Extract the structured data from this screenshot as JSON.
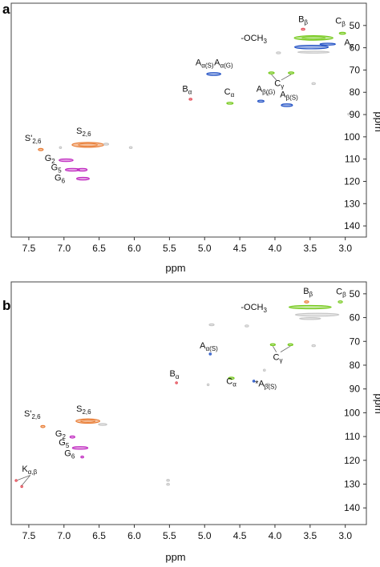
{
  "chart_data": [
    {
      "type": "scatter",
      "panel_label": "a",
      "xlabel": "ppm",
      "ylabel": "ppm",
      "xlim": [
        7.75,
        2.7
      ],
      "ylim": [
        40,
        145
      ],
      "x_ticks": [
        7.5,
        7.0,
        6.5,
        6.0,
        5.5,
        5.0,
        4.5,
        4.0,
        3.5,
        3.0
      ],
      "x_tick_labels": [
        "7.5",
        "7.0",
        "6.5",
        "6.0",
        "5.5",
        "5.0",
        "4.5",
        "4.0",
        "3.5",
        "3.0"
      ],
      "y_ticks": [
        50,
        60,
        70,
        80,
        90,
        100,
        110,
        120,
        130,
        140
      ],
      "y_tick_labels": [
        "50",
        "60",
        "70",
        "80",
        "90",
        "100",
        "110",
        "120",
        "130",
        "140"
      ],
      "series": [
        {
          "color": "#e8792f",
          "points": [
            {
              "x": 6.66,
              "y": 103.6,
              "w": 0.45,
              "h": 2.2
            },
            {
              "x": 7.33,
              "y": 105.7,
              "w": 0.07,
              "h": 1.0
            }
          ]
        },
        {
          "color": "#c02ac0",
          "points": [
            {
              "x": 6.97,
              "y": 110.5,
              "w": 0.2,
              "h": 1.2
            },
            {
              "x": 6.88,
              "y": 114.8,
              "w": 0.2,
              "h": 1.2
            },
            {
              "x": 6.74,
              "y": 114.8,
              "w": 0.14,
              "h": 1.2
            },
            {
              "x": 6.73,
              "y": 118.8,
              "w": 0.18,
              "h": 1.2
            }
          ]
        },
        {
          "color": "#1f4fc4",
          "points": [
            {
              "x": 4.87,
              "y": 71.8,
              "w": 0.2,
              "h": 1.3
            },
            {
              "x": 3.83,
              "y": 85.8,
              "w": 0.16,
              "h": 1.2
            },
            {
              "x": 4.2,
              "y": 84.0,
              "w": 0.09,
              "h": 0.9
            },
            {
              "x": 3.48,
              "y": 59.7,
              "w": 0.48,
              "h": 1.6
            },
            {
              "x": 3.25,
              "y": 58.4,
              "w": 0.22,
              "h": 0.8
            }
          ]
        },
        {
          "color": "#72c816",
          "points": [
            {
              "x": 3.45,
              "y": 55.6,
              "w": 0.55,
              "h": 2.0
            },
            {
              "x": 3.04,
              "y": 53.5,
              "w": 0.09,
              "h": 0.9
            },
            {
              "x": 4.05,
              "y": 71.3,
              "w": 0.08,
              "h": 0.9
            },
            {
              "x": 3.77,
              "y": 71.3,
              "w": 0.08,
              "h": 0.9
            },
            {
              "x": 4.64,
              "y": 84.9,
              "w": 0.09,
              "h": 0.9
            }
          ]
        },
        {
          "color": "#e34a55",
          "points": [
            {
              "x": 3.6,
              "y": 51.7,
              "w": 0.05,
              "h": 0.8
            },
            {
              "x": 5.2,
              "y": 83.1,
              "w": 0.04,
              "h": 0.6
            }
          ]
        },
        {
          "color": "#c6c6c6",
          "points": [
            {
              "x": 3.45,
              "y": 62.0,
              "w": 0.45,
              "h": 0.7
            },
            {
              "x": 3.95,
              "y": 62.3,
              "w": 0.06,
              "h": 0.6
            },
            {
              "x": 3.45,
              "y": 76.1,
              "w": 0.05,
              "h": 0.5
            },
            {
              "x": 4.1,
              "y": 81.0,
              "w": 0.04,
              "h": 0.5
            },
            {
              "x": 6.4,
              "y": 103.3,
              "w": 0.07,
              "h": 0.5
            },
            {
              "x": 6.05,
              "y": 104.8,
              "w": 0.04,
              "h": 0.5
            },
            {
              "x": 7.05,
              "y": 104.8,
              "w": 0.03,
              "h": 0.4
            },
            {
              "x": 2.95,
              "y": 89.8,
              "w": 0.03,
              "h": 0.4
            }
          ]
        }
      ],
      "labels": [
        {
          "text": "S'",
          "sub": "2,6",
          "x": 7.44,
          "y": 101.8
        },
        {
          "text": "S",
          "sub": "2,6",
          "x": 6.72,
          "y": 98.6
        },
        {
          "text": "G",
          "sub": "2",
          "x": 7.2,
          "y": 110.8
        },
        {
          "text": "G",
          "sub": "5",
          "x": 7.11,
          "y": 115.0
        },
        {
          "text": "G",
          "sub": "6",
          "x": 7.06,
          "y": 119.6
        },
        {
          "text": "A",
          "sub": "α(S)",
          "x": 5.0,
          "y": 67.8
        },
        {
          "text": "A",
          "sub": "α(G)",
          "x": 4.73,
          "y": 67.8
        },
        {
          "text": "B",
          "sub": "α",
          "x": 5.25,
          "y": 79.8
        },
        {
          "text": "C",
          "sub": "α",
          "x": 4.65,
          "y": 81.0
        },
        {
          "text": "A",
          "sub": "β(G)",
          "x": 4.13,
          "y": 79.8
        },
        {
          "text": "A",
          "sub": "β(S)",
          "x": 3.8,
          "y": 82.2
        },
        {
          "text": "C",
          "sub": "γ",
          "x": 3.94,
          "y": 77.2
        },
        {
          "text": "-OCH",
          "sub": "3",
          "x": 4.3,
          "y": 56.9
        },
        {
          "text": "B",
          "sub": "β",
          "x": 3.6,
          "y": 48.5
        },
        {
          "text": "C",
          "sub": "β",
          "x": 3.07,
          "y": 49.1
        },
        {
          "text": "A",
          "sub": "γ",
          "x": 2.95,
          "y": 58.9
        }
      ],
      "leaders": [
        {
          "x1": 3.98,
          "y1": 74.5,
          "x2": 4.05,
          "y2": 72.0
        },
        {
          "x1": 3.91,
          "y1": 74.5,
          "x2": 3.77,
          "y2": 72.0
        }
      ]
    },
    {
      "type": "scatter",
      "panel_label": "b",
      "xlabel": "ppm",
      "ylabel": "ppm",
      "xlim": [
        7.75,
        2.7
      ],
      "ylim": [
        45,
        147
      ],
      "x_ticks": [
        7.5,
        7.0,
        6.5,
        6.0,
        5.5,
        5.0,
        4.5,
        4.0,
        3.5,
        3.0
      ],
      "x_tick_labels": [
        "7.5",
        "7.0",
        "6.5",
        "6.0",
        "5.5",
        "5.0",
        "4.5",
        "4.0",
        "3.5",
        "3.0"
      ],
      "y_ticks": [
        50,
        60,
        70,
        80,
        90,
        100,
        110,
        120,
        130,
        140
      ],
      "y_tick_labels": [
        "50",
        "60",
        "70",
        "80",
        "90",
        "100",
        "110",
        "120",
        "130",
        "140"
      ],
      "series": [
        {
          "color": "#e8792f",
          "points": [
            {
              "x": 6.66,
              "y": 103.5,
              "w": 0.34,
              "h": 1.8
            },
            {
              "x": 7.3,
              "y": 105.8,
              "w": 0.06,
              "h": 0.9
            },
            {
              "x": 3.55,
              "y": 53.4,
              "w": 0.06,
              "h": 0.9
            }
          ]
        },
        {
          "color": "#c02ac0",
          "points": [
            {
              "x": 6.88,
              "y": 110.2,
              "w": 0.07,
              "h": 0.9
            },
            {
              "x": 6.77,
              "y": 114.8,
              "w": 0.22,
              "h": 1.1
            },
            {
              "x": 6.74,
              "y": 118.6,
              "w": 0.04,
              "h": 0.7
            }
          ]
        },
        {
          "color": "#72c816",
          "points": [
            {
              "x": 3.5,
              "y": 55.6,
              "w": 0.6,
              "h": 1.4
            },
            {
              "x": 3.07,
              "y": 53.4,
              "w": 0.06,
              "h": 0.9
            },
            {
              "x": 4.03,
              "y": 71.4,
              "w": 0.07,
              "h": 0.8
            },
            {
              "x": 3.78,
              "y": 71.4,
              "w": 0.07,
              "h": 0.8
            },
            {
              "x": 4.62,
              "y": 85.5,
              "w": 0.08,
              "h": 0.9
            }
          ]
        },
        {
          "color": "#1f4fc4",
          "points": [
            {
              "x": 4.92,
              "y": 75.3,
              "w": 0.02,
              "h": 0.4
            },
            {
              "x": 4.3,
              "y": 86.7,
              "w": 0.02,
              "h": 0.4
            }
          ]
        },
        {
          "color": "#e34a55",
          "points": [
            {
              "x": 5.4,
              "y": 87.4,
              "w": 0.02,
              "h": 0.4
            },
            {
              "x": 7.68,
              "y": 128.5,
              "w": 0.025,
              "h": 0.6
            },
            {
              "x": 7.6,
              "y": 131.0,
              "w": 0.025,
              "h": 0.6
            }
          ]
        },
        {
          "color": "#c6c6c6",
          "points": [
            {
              "x": 3.4,
              "y": 58.8,
              "w": 0.62,
              "h": 1.2
            },
            {
              "x": 3.5,
              "y": 60.4,
              "w": 0.3,
              "h": 0.7
            },
            {
              "x": 4.9,
              "y": 63.0,
              "w": 0.07,
              "h": 0.5
            },
            {
              "x": 4.4,
              "y": 63.5,
              "w": 0.05,
              "h": 0.4
            },
            {
              "x": 3.45,
              "y": 71.8,
              "w": 0.05,
              "h": 0.4
            },
            {
              "x": 4.15,
              "y": 82.1,
              "w": 0.03,
              "h": 0.4
            },
            {
              "x": 6.45,
              "y": 104.9,
              "w": 0.12,
              "h": 0.7
            },
            {
              "x": 5.52,
              "y": 128.4,
              "w": 0.04,
              "h": 0.5
            },
            {
              "x": 5.52,
              "y": 130.1,
              "w": 0.04,
              "h": 0.5
            },
            {
              "x": 4.95,
              "y": 88.2,
              "w": 0.02,
              "h": 0.3
            },
            {
              "x": 4.1,
              "y": 88.0,
              "w": 0.02,
              "h": 0.3
            }
          ]
        }
      ],
      "labels": [
        {
          "text": "S'",
          "sub": "2,6",
          "x": 7.45,
          "y": 101.6
        },
        {
          "text": "S",
          "sub": "2,6",
          "x": 6.72,
          "y": 99.5
        },
        {
          "text": "G",
          "sub": "2",
          "x": 7.05,
          "y": 110.0
        },
        {
          "text": "G",
          "sub": "5",
          "x": 7.0,
          "y": 113.7
        },
        {
          "text": "G",
          "sub": "6",
          "x": 6.92,
          "y": 118.3
        },
        {
          "text": "K",
          "sub": "α,β",
          "x": 7.49,
          "y": 124.7
        },
        {
          "text": "A",
          "sub": "α(S)",
          "x": 4.94,
          "y": 73.0
        },
        {
          "text": "B",
          "sub": "α",
          "x": 5.43,
          "y": 84.8
        },
        {
          "text": "C",
          "sub": "α",
          "x": 4.62,
          "y": 88.0
        },
        {
          "text": "*A",
          "sub": "β(S)",
          "x": 4.13,
          "y": 88.9
        },
        {
          "text": "C",
          "sub": "γ",
          "x": 3.96,
          "y": 77.8
        },
        {
          "text": "-OCH",
          "sub": "3",
          "x": 4.3,
          "y": 56.7
        },
        {
          "text": "B",
          "sub": "β",
          "x": 3.53,
          "y": 50.0
        },
        {
          "text": "C",
          "sub": "β",
          "x": 3.06,
          "y": 50.3
        }
      ],
      "leaders": [
        {
          "x1": 3.98,
          "y1": 74.5,
          "x2": 4.03,
          "y2": 72.0
        },
        {
          "x1": 3.92,
          "y1": 74.5,
          "x2": 3.78,
          "y2": 72.0
        },
        {
          "x1": 7.48,
          "y1": 126.3,
          "x2": 7.66,
          "y2": 128.3
        },
        {
          "x1": 7.48,
          "y1": 126.3,
          "x2": 7.6,
          "y2": 130.6
        }
      ]
    }
  ]
}
